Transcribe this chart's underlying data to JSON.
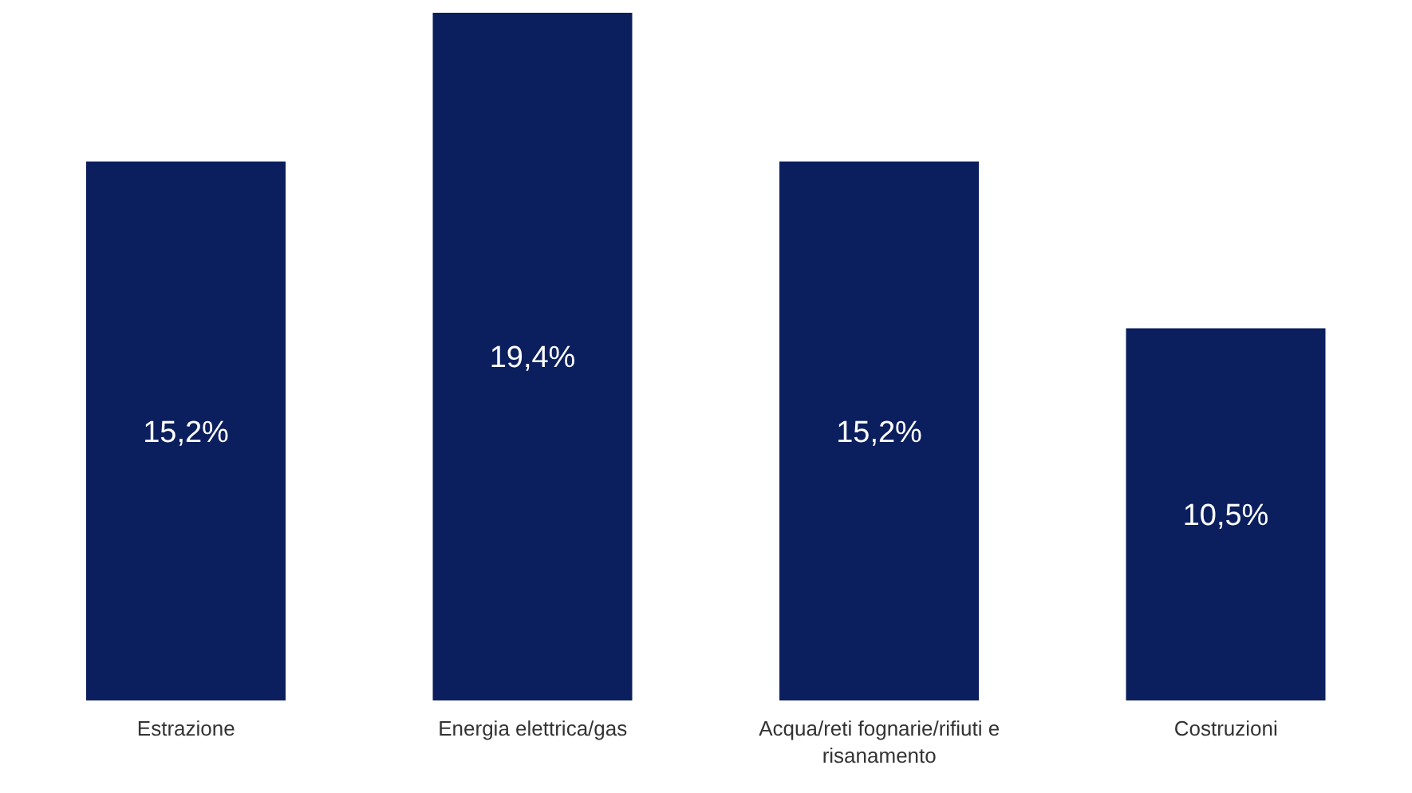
{
  "chart_data": {
    "type": "bar",
    "categories": [
      "Estrazione",
      "Energia elettrica/gas",
      "Acqua/reti fognarie/rifiuti e risanamento",
      "Costruzioni"
    ],
    "values": [
      15.2,
      19.4,
      15.2,
      10.5
    ],
    "value_labels": [
      "15,2%",
      "19,4%",
      "15,2%",
      "10,5%"
    ],
    "color": "#0b1f5e",
    "grid": false,
    "legend": false
  }
}
